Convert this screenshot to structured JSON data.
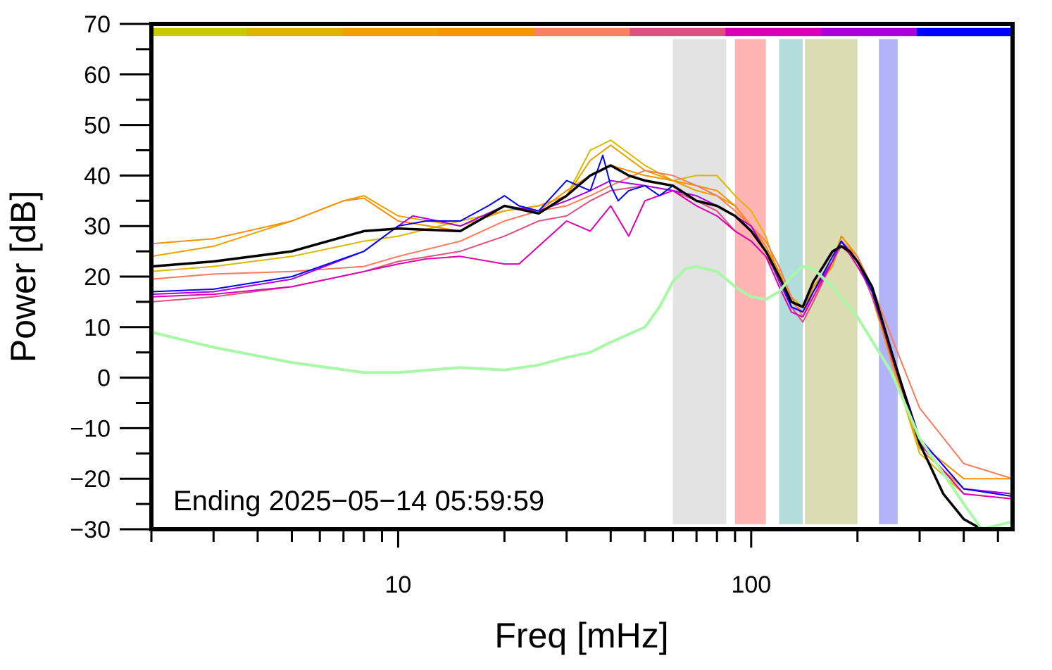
{
  "chart_data": {
    "type": "line",
    "xlabel": "Freq [mHz]",
    "ylabel": "Power [dB]",
    "x_scale": "log",
    "xlim": [
      2,
      550
    ],
    "ylim": [
      -30,
      70
    ],
    "x_tick_labels": [
      "10",
      "100"
    ],
    "y_tick_labels": [
      "70",
      "60",
      "50",
      "40",
      "30",
      "20",
      "10",
      "0",
      "−10",
      "−20",
      "−30"
    ],
    "annotation": "Ending 2025−05−14 05:59:59",
    "grid": false,
    "legend": "none",
    "shaded_bands": [
      {
        "x": [
          60,
          85
        ],
        "color": "#e3e3e3"
      },
      {
        "x": [
          90,
          110
        ],
        "color": "#ffb3b3"
      },
      {
        "x": [
          120,
          140
        ],
        "color": "#b3dcdc"
      },
      {
        "x": [
          142,
          200
        ],
        "color": "#dcdcb3"
      },
      {
        "x": [
          230,
          260
        ],
        "color": "#b3b3f8"
      }
    ],
    "color_bar": [
      "#c8c800",
      "#dcb400",
      "#f0a000",
      "#f59600",
      "#fa8064",
      "#dc5082",
      "#dc00b4",
      "#aa00dc",
      "#0000ff"
    ],
    "series": [
      {
        "color": "#d9b800",
        "x": [
          2,
          3,
          5,
          8,
          10,
          15,
          20,
          25,
          30,
          35,
          40,
          50,
          60,
          70,
          80,
          90,
          100,
          110,
          120,
          130,
          140,
          150,
          170,
          180,
          190,
          200,
          220,
          250,
          300,
          400,
          550
        ],
        "y": [
          21,
          22,
          24,
          27,
          28,
          31,
          33,
          34,
          36,
          45,
          47,
          42,
          39,
          40,
          40,
          36,
          33,
          28,
          20,
          16,
          14,
          18,
          22,
          28,
          26,
          24,
          18,
          3,
          -15,
          -23,
          -24
        ]
      },
      {
        "color": "#e8a000",
        "x": [
          2,
          3,
          5,
          7,
          8,
          10,
          15,
          20,
          25,
          30,
          35,
          40,
          50,
          60,
          70,
          80,
          90,
          100,
          110,
          120,
          130,
          140,
          150,
          170,
          180,
          200,
          220,
          250,
          300,
          400,
          550
        ],
        "y": [
          24,
          26,
          31,
          35,
          36,
          32,
          30,
          33,
          34,
          36,
          43,
          46,
          41,
          39,
          37,
          36,
          34,
          30,
          26,
          20,
          15,
          13,
          17,
          22,
          27,
          23,
          16,
          3,
          -14,
          -22,
          -23
        ]
      },
      {
        "color": "#f29000",
        "x": [
          2,
          3,
          5,
          7,
          8,
          10,
          15,
          20,
          25,
          30,
          35,
          40,
          50,
          60,
          70,
          80,
          90,
          100,
          110,
          120,
          130,
          140,
          150,
          170,
          180,
          200,
          220,
          250,
          300,
          400,
          550
        ],
        "y": [
          26.5,
          27.5,
          31,
          35,
          35.5,
          31,
          29,
          34,
          33,
          37,
          40,
          42,
          40,
          39,
          38,
          37,
          34,
          30,
          26,
          21,
          15,
          13,
          18,
          23,
          28,
          24,
          18,
          4,
          -13,
          -20,
          -20
        ]
      },
      {
        "color": "#fa7a5a",
        "x": [
          2,
          3,
          5,
          8,
          10,
          15,
          20,
          25,
          30,
          35,
          40,
          50,
          60,
          70,
          80,
          90,
          100,
          110,
          120,
          130,
          140,
          150,
          170,
          180,
          200,
          220,
          250,
          300,
          400,
          550
        ],
        "y": [
          19.5,
          20.5,
          21,
          22,
          24,
          27,
          31,
          33,
          34,
          36,
          38,
          41,
          40,
          38,
          36,
          33,
          30,
          27,
          22,
          16,
          12,
          17,
          24,
          27,
          24,
          18,
          8,
          -6,
          -17,
          -20
        ]
      },
      {
        "color": "#dc5080",
        "x": [
          2,
          3,
          5,
          8,
          10,
          15,
          20,
          25,
          30,
          35,
          40,
          50,
          60,
          70,
          80,
          90,
          100,
          110,
          120,
          130,
          140,
          150,
          170,
          180,
          200,
          220,
          250,
          300,
          400,
          550
        ],
        "y": [
          15,
          16,
          18,
          21,
          23,
          25,
          28,
          31,
          32,
          35,
          37,
          38,
          37,
          35,
          33,
          29,
          27,
          24,
          20,
          14,
          11,
          15,
          23,
          26,
          23,
          16,
          5,
          -12,
          -22,
          -23
        ]
      },
      {
        "color": "#dc00b0",
        "x": [
          2,
          3,
          5,
          8,
          10,
          12,
          15,
          20,
          22,
          25,
          30,
          35,
          40,
          45,
          50,
          60,
          70,
          80,
          90,
          100,
          110,
          120,
          130,
          140,
          150,
          170,
          180,
          200,
          220,
          250,
          300,
          400,
          550
        ],
        "y": [
          16,
          16.5,
          18,
          21,
          22.5,
          23.5,
          24,
          22.5,
          22.5,
          26,
          31,
          29,
          34,
          28,
          35,
          37,
          34,
          32,
          29,
          27,
          24,
          18,
          13,
          12,
          16,
          23,
          27,
          22,
          17,
          4,
          -13,
          -23,
          -24
        ]
      },
      {
        "color": "#aa00dc",
        "x": [
          2,
          3,
          5,
          8,
          10,
          11,
          13,
          15,
          20,
          25,
          30,
          35,
          40,
          50,
          60,
          70,
          80,
          90,
          100,
          110,
          120,
          130,
          140,
          150,
          170,
          180,
          200,
          220,
          250,
          300,
          400,
          550
        ],
        "y": [
          16.5,
          17,
          19.5,
          25,
          30,
          32,
          31,
          30,
          34,
          33,
          35,
          37,
          39,
          38,
          37,
          36,
          34,
          32,
          30,
          25,
          19,
          14,
          13,
          17,
          23,
          27,
          23,
          17,
          5,
          -12,
          -22,
          -23
        ]
      },
      {
        "color": "#0000ff",
        "x": [
          2,
          3,
          5,
          8,
          10,
          12,
          15,
          18,
          20,
          22,
          25,
          30,
          35,
          38,
          40,
          42,
          45,
          50,
          55,
          60,
          70,
          80,
          90,
          100,
          110,
          120,
          130,
          140,
          150,
          170,
          180,
          200,
          220,
          250,
          300,
          400,
          550
        ],
        "y": [
          17,
          17.5,
          20,
          25,
          30,
          31,
          31,
          34,
          36,
          34,
          33,
          39,
          37,
          44,
          38,
          35,
          37,
          38,
          36,
          38,
          35,
          34,
          32,
          29,
          25,
          20,
          14,
          13,
          17,
          24,
          27,
          23,
          17,
          5,
          -12,
          -22,
          -23.5
        ]
      },
      {
        "color": "#000000",
        "x": [
          2,
          3,
          5,
          8,
          10,
          15,
          20,
          25,
          30,
          35,
          40,
          45,
          50,
          60,
          70,
          80,
          90,
          100,
          110,
          120,
          130,
          140,
          150,
          160,
          170,
          180,
          190,
          200,
          220,
          250,
          300,
          350,
          400,
          450,
          550
        ],
        "y": [
          22,
          23,
          25,
          29,
          29.5,
          29,
          34,
          32.5,
          36,
          40,
          42,
          40,
          39,
          38,
          35,
          34,
          32,
          29,
          25,
          20,
          15,
          14,
          19,
          22,
          25,
          26,
          25,
          23,
          18,
          5,
          -13,
          -23,
          -28,
          -30,
          -30
        ]
      },
      {
        "color": "#a8f8a8",
        "x": [
          2,
          3,
          5,
          8,
          10,
          15,
          20,
          25,
          30,
          35,
          40,
          50,
          55,
          60,
          65,
          70,
          80,
          90,
          100,
          110,
          120,
          130,
          140,
          150,
          170,
          200,
          250,
          300,
          400,
          450,
          550
        ],
        "y": [
          9,
          6,
          3,
          1,
          1,
          2,
          1.5,
          2.5,
          4,
          5,
          7,
          10,
          14,
          19,
          21.5,
          22,
          21,
          18,
          16,
          15.5,
          17,
          20,
          22,
          21.5,
          18,
          12,
          1,
          -12,
          -25,
          -30,
          -28.5
        ]
      }
    ]
  }
}
